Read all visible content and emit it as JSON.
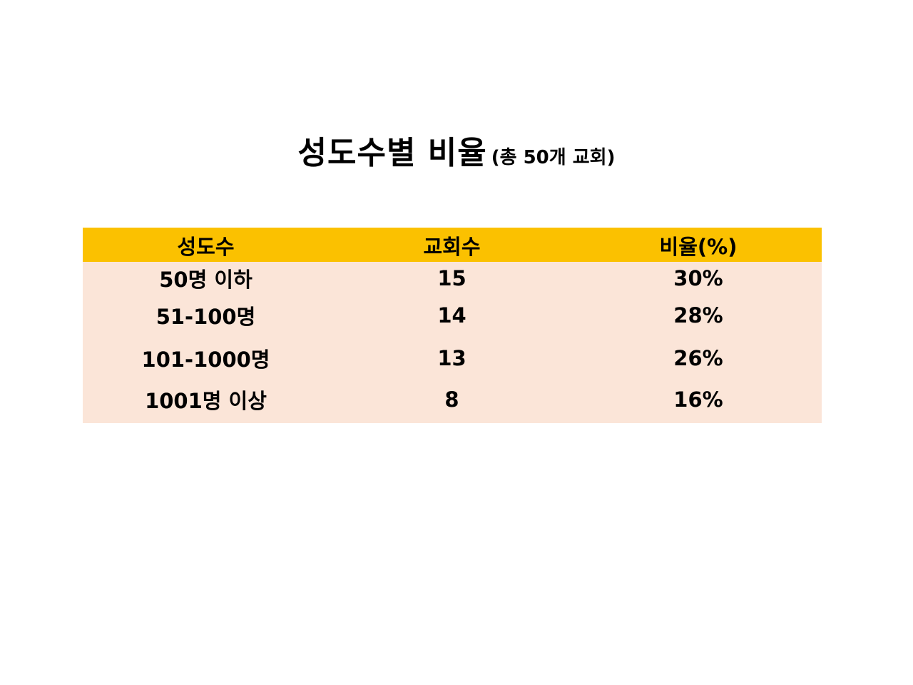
{
  "title": {
    "main": "성도수별 비율",
    "sub": "(총 50개 교회)"
  },
  "colors": {
    "header_background": "#FBC100",
    "body_background": "#FBE5D8"
  },
  "table": {
    "columns": [
      "성도수",
      "교회수",
      "비율(%)"
    ],
    "rows": [
      [
        "50명 이하",
        "15",
        "30%"
      ],
      [
        "51-100명",
        "14",
        "28%"
      ],
      [
        "101-1000명",
        "13",
        "26%"
      ],
      [
        "1001명 이상",
        "8",
        "16%"
      ]
    ]
  }
}
